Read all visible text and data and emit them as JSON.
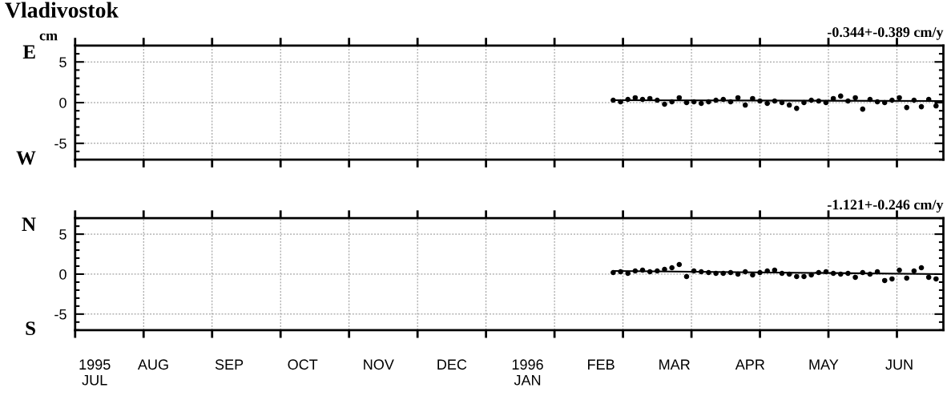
{
  "chart_data": [
    {
      "type": "scatter",
      "title": "Vladivostok",
      "ylabel": "cm",
      "annotations": [
        "E",
        "W",
        "-0.344+-0.389 cm/y"
      ],
      "grid": true,
      "tick_labels": "y",
      "xlim": [
        "1995-07-15",
        "1996-07-04"
      ],
      "xticks": [
        {
          "value": "1995-07-15",
          "label": null
        },
        {
          "value": "1995-08-12",
          "label": null
        },
        {
          "value": "1995-09-09",
          "label": null
        },
        {
          "value": "1995-10-07",
          "label": null
        },
        {
          "value": "1995-11-04",
          "label": null
        },
        {
          "value": "1995-12-02",
          "label": null
        },
        {
          "value": "1995-12-30",
          "label": null
        },
        {
          "value": "1996-01-27",
          "label": null
        },
        {
          "value": "1996-02-24",
          "label": null
        },
        {
          "value": "1996-03-23",
          "label": null
        },
        {
          "value": "1996-04-20",
          "label": null
        },
        {
          "value": "1996-05-18",
          "label": null
        },
        {
          "value": "1996-06-15",
          "label": null
        }
      ],
      "ylim": [
        -7,
        7
      ],
      "yticks": [
        {
          "value": -7,
          "label": null
        },
        {
          "value": -6,
          "label": null
        },
        -5,
        {
          "value": -4,
          "label": null
        },
        {
          "value": -3,
          "label": null
        },
        {
          "value": -2,
          "label": null
        },
        {
          "value": -1,
          "label": null
        },
        0,
        {
          "value": 1,
          "label": null
        },
        {
          "value": 2,
          "label": null
        },
        {
          "value": 3,
          "label": null
        },
        {
          "value": 4,
          "label": null
        },
        5,
        {
          "value": 6,
          "label": null
        },
        {
          "value": 7,
          "label": null
        }
      ],
      "x": [
        "1996-02-20",
        "1996-02-23",
        "1996-02-26",
        "1996-02-29",
        "1996-03-03",
        "1996-03-06",
        "1996-03-09",
        "1996-03-12",
        "1996-03-15",
        "1996-03-18",
        "1996-03-21",
        "1996-03-24",
        "1996-03-27",
        "1996-03-30",
        "1996-04-02",
        "1996-04-05",
        "1996-04-08",
        "1996-04-11",
        "1996-04-14",
        "1996-04-17",
        "1996-04-20",
        "1996-04-23",
        "1996-04-26",
        "1996-04-29",
        "1996-05-02",
        "1996-05-05",
        "1996-05-08",
        "1996-05-11",
        "1996-05-14",
        "1996-05-17",
        "1996-05-20",
        "1996-05-23",
        "1996-05-26",
        "1996-05-29",
        "1996-06-01",
        "1996-06-04",
        "1996-06-07",
        "1996-06-10",
        "1996-06-13",
        "1996-06-16",
        "1996-06-19",
        "1996-06-22",
        "1996-06-25",
        "1996-06-28",
        "1996-07-01"
      ],
      "series": [
        {
          "marker": "circle",
          "color": "#000000",
          "values": [
            0.3,
            0.1,
            0.4,
            0.6,
            0.4,
            0.5,
            0.3,
            -0.2,
            0.1,
            0.6,
            0.0,
            0.1,
            -0.1,
            0.1,
            0.3,
            0.4,
            0.1,
            0.6,
            -0.3,
            0.5,
            0.2,
            -0.1,
            0.2,
            0.0,
            -0.3,
            -0.7,
            0.0,
            0.3,
            0.2,
            0.0,
            0.5,
            0.8,
            0.2,
            0.6,
            -0.8,
            0.4,
            0.1,
            0.0,
            0.3,
            0.6,
            -0.6,
            0.3,
            -0.5,
            0.4,
            -0.4
          ]
        },
        {
          "type": "line",
          "color": "#000000",
          "x": [
            "1996-02-20",
            "1996-07-04"
          ],
          "values": [
            0.3,
            0.2
          ]
        }
      ]
    },
    {
      "type": "scatter",
      "annotations": [
        "N",
        "S",
        "-1.121+-0.246 cm/y"
      ],
      "grid": true,
      "xlim": [
        "1995-07-15",
        "1996-07-04"
      ],
      "xticks": [
        {
          "value": "1995-07-15",
          "label": null
        },
        {
          "value": "1995-08-12",
          "label": null
        },
        {
          "value": "1995-09-09",
          "label": null
        },
        {
          "value": "1995-10-07",
          "label": null
        },
        {
          "value": "1995-11-04",
          "label": null
        },
        {
          "value": "1995-12-02",
          "label": null
        },
        {
          "value": "1995-12-30",
          "label": null
        },
        {
          "value": "1996-01-27",
          "label": null
        },
        {
          "value": "1996-02-24",
          "label": null
        },
        {
          "value": "1996-03-23",
          "label": null
        },
        {
          "value": "1996-04-20",
          "label": null
        },
        {
          "value": "1996-05-18",
          "label": null
        },
        {
          "value": "1996-06-15",
          "label": null
        },
        {
          "value": "1995-07-23",
          "label": "1995\nJUL"
        },
        {
          "value": "1995-08-16",
          "label": "AUG"
        },
        {
          "value": "1995-09-16",
          "label": "SEP"
        },
        {
          "value": "1995-10-16",
          "label": "OCT"
        },
        {
          "value": "1995-11-16",
          "label": "NOV"
        },
        {
          "value": "1995-12-16",
          "label": "DEC"
        },
        {
          "value": "1996-01-16",
          "label": "1996\nJAN"
        },
        {
          "value": "1996-02-15",
          "label": "FEB"
        },
        {
          "value": "1996-03-16",
          "label": "MAR"
        },
        {
          "value": "1996-04-16",
          "label": "APR"
        },
        {
          "value": "1996-05-16",
          "label": "MAY"
        },
        {
          "value": "1996-06-16",
          "label": "JUN"
        }
      ],
      "ylim": [
        -7,
        7
      ],
      "yticks": [
        {
          "value": -7,
          "label": null
        },
        {
          "value": -6,
          "label": null
        },
        -5,
        {
          "value": -4,
          "label": null
        },
        {
          "value": -3,
          "label": null
        },
        {
          "value": -2,
          "label": null
        },
        {
          "value": -1,
          "label": null
        },
        0,
        {
          "value": 1,
          "label": null
        },
        {
          "value": 2,
          "label": null
        },
        {
          "value": 3,
          "label": null
        },
        {
          "value": 4,
          "label": null
        },
        5,
        {
          "value": 6,
          "label": null
        },
        {
          "value": 7,
          "label": null
        }
      ],
      "x": [
        "1996-02-20",
        "1996-02-23",
        "1996-02-26",
        "1996-02-29",
        "1996-03-03",
        "1996-03-06",
        "1996-03-09",
        "1996-03-12",
        "1996-03-15",
        "1996-03-18",
        "1996-03-21",
        "1996-03-24",
        "1996-03-27",
        "1996-03-30",
        "1996-04-02",
        "1996-04-05",
        "1996-04-08",
        "1996-04-11",
        "1996-04-14",
        "1996-04-17",
        "1996-04-20",
        "1996-04-23",
        "1996-04-26",
        "1996-04-29",
        "1996-05-02",
        "1996-05-05",
        "1996-05-08",
        "1996-05-11",
        "1996-05-14",
        "1996-05-17",
        "1996-05-20",
        "1996-05-23",
        "1996-05-26",
        "1996-05-29",
        "1996-06-01",
        "1996-06-04",
        "1996-06-07",
        "1996-06-10",
        "1996-06-13",
        "1996-06-16",
        "1996-06-19",
        "1996-06-22",
        "1996-06-25",
        "1996-06-28",
        "1996-07-01"
      ],
      "series": [
        {
          "marker": "circle",
          "color": "#000000",
          "values": [
            0.2,
            0.3,
            0.1,
            0.4,
            0.5,
            0.3,
            0.4,
            0.6,
            0.8,
            1.2,
            -0.3,
            0.4,
            0.3,
            0.2,
            0.1,
            0.1,
            0.2,
            0.0,
            0.3,
            -0.1,
            0.2,
            0.4,
            0.5,
            0.1,
            0.0,
            -0.3,
            -0.3,
            -0.1,
            0.2,
            0.3,
            0.1,
            0.0,
            0.1,
            -0.4,
            0.2,
            0.0,
            0.3,
            -0.8,
            -0.6,
            0.5,
            -0.5,
            0.4,
            0.8,
            -0.4,
            -0.6
          ]
        },
        {
          "type": "line",
          "color": "#000000",
          "x": [
            "1996-02-20",
            "1996-07-04"
          ],
          "values": [
            0.4,
            0.0
          ]
        }
      ]
    }
  ]
}
